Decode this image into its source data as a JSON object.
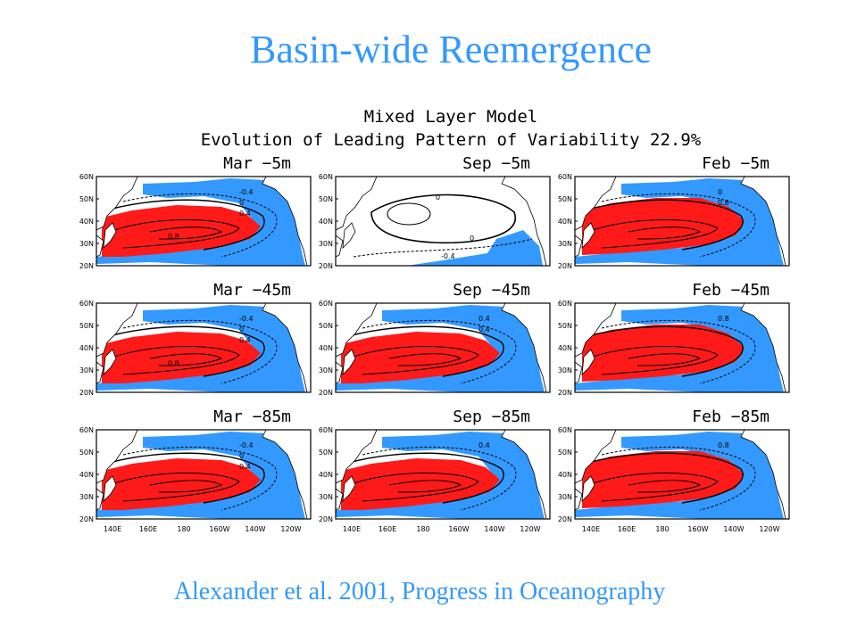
{
  "slide": {
    "title": "Basin-wide Reemergence",
    "citation": "Alexander et al. 2001, Progress in Oceanography"
  },
  "figure": {
    "title_line1": "Mixed Layer Model",
    "title_line2": "Evolution of Leading Pattern of Variability 22.9%",
    "lat_labels": [
      "60N",
      "50N",
      "40N",
      "30N",
      "20N"
    ],
    "lon_labels": [
      "140E",
      "160E",
      "180",
      "160W",
      "140W",
      "120W"
    ],
    "colors": {
      "positive": "#ff1a1a",
      "negative": "#3399ff",
      "land": "#ffffff"
    },
    "panels": [
      {
        "label": "Mar −5m",
        "contours": [
          "-0.4",
          "0",
          "0.4",
          "0.8"
        ]
      },
      {
        "label": "Sep −5m",
        "contours": [
          "0",
          "0",
          "-0.4"
        ]
      },
      {
        "label": "Feb −5m",
        "contours": [
          "0",
          "0.8"
        ]
      },
      {
        "label": "Mar −45m",
        "contours": [
          "-0.4",
          "0",
          "0.4",
          "0.8"
        ]
      },
      {
        "label": "Sep −45m",
        "contours": [
          "0.4",
          "0.4"
        ]
      },
      {
        "label": "Feb −45m",
        "contours": [
          "0.8"
        ]
      },
      {
        "label": "Mar −85m",
        "contours": [
          "-0.4",
          "0",
          "0.4"
        ]
      },
      {
        "label": "Sep −85m",
        "contours": [
          "0.4"
        ]
      },
      {
        "label": "Feb −85m",
        "contours": [
          "0.8"
        ]
      }
    ]
  }
}
